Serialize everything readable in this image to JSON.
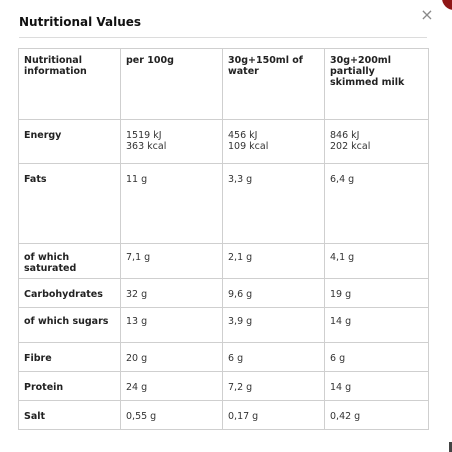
{
  "dialog": {
    "title": "Nutritional Values",
    "close_label": "×"
  },
  "table": {
    "headers": [
      "Nutritional information",
      "per 100g",
      "30g+150ml of water",
      "30g+200ml partially skimmed milk"
    ],
    "rows": [
      {
        "label": "Energy",
        "values": [
          [
            "1519 kJ",
            "363 kcal"
          ],
          [
            "456 kJ",
            "109 kcal"
          ],
          [
            "846 kJ",
            "202 kcal"
          ]
        ]
      },
      {
        "label": "Fats",
        "values": [
          [
            "11 g"
          ],
          [
            "3,3 g"
          ],
          [
            "6,4 g"
          ]
        ]
      },
      {
        "label": "of which saturated",
        "values": [
          [
            "7,1 g"
          ],
          [
            "2,1 g"
          ],
          [
            "4,1 g"
          ]
        ]
      },
      {
        "label": "Carbohydrates",
        "values": [
          [
            "32 g"
          ],
          [
            "9,6 g"
          ],
          [
            "19 g"
          ]
        ]
      },
      {
        "label": "of which sugars",
        "values": [
          [
            "13 g"
          ],
          [
            "3,9 g"
          ],
          [
            "14 g"
          ]
        ]
      },
      {
        "label": "Fibre",
        "values": [
          [
            "20 g"
          ],
          [
            "6 g"
          ],
          [
            "6 g"
          ]
        ]
      },
      {
        "label": "Protein",
        "values": [
          [
            "24 g"
          ],
          [
            "7,2 g"
          ],
          [
            "14 g"
          ]
        ]
      },
      {
        "label": "Salt",
        "values": [
          [
            "0,55 g"
          ],
          [
            "0,17 g"
          ],
          [
            "0,42 g"
          ]
        ]
      }
    ]
  },
  "colors": {
    "accent": "#8f1616",
    "border": "#cfcfcf"
  }
}
